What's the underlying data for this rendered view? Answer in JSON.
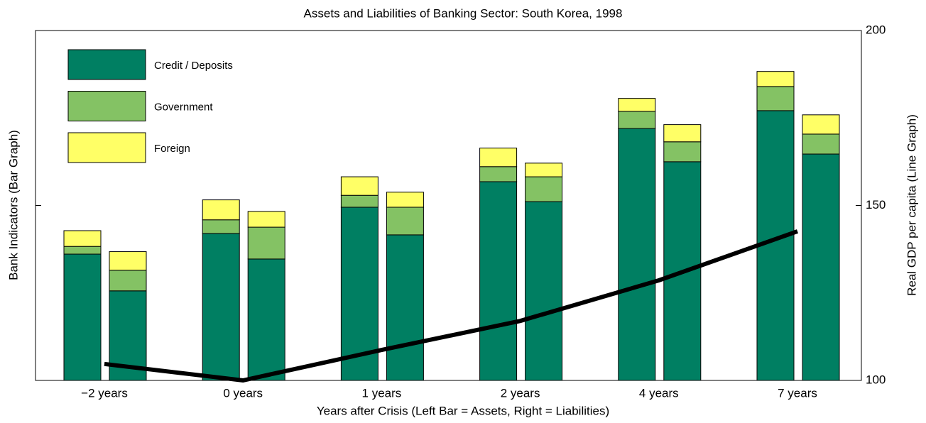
{
  "chart_data": {
    "type": "stacked-bar-line",
    "title": "Assets and Liabilities of Banking Sector: South Korea, 1998",
    "xlabel": "Years after Crisis (Left Bar = Assets, Right = Liabilities)",
    "ylabel": "Bank Indicators (Bar Graph)",
    "y2label": "Real GDP per capita (Line Graph)",
    "categories": [
      "−2 years",
      "0 years",
      "1 years",
      "2 years",
      "4 years",
      "7 years"
    ],
    "series": [
      {
        "name": "Credit / Deposits",
        "color": "#007f62",
        "axis": "y2",
        "assets": [
          136.1,
          142.0,
          149.5,
          156.8,
          172.0,
          177.1
        ],
        "liabilities": [
          125.6,
          134.7,
          141.6,
          151.1,
          162.5,
          164.7
        ]
      },
      {
        "name": "Government",
        "color": "#84c264",
        "axis": "y2",
        "assets": [
          2.2,
          3.9,
          3.4,
          4.3,
          4.9,
          6.9
        ],
        "liabilities": [
          5.9,
          9.1,
          7.9,
          7.1,
          5.7,
          5.7
        ]
      },
      {
        "name": "Foreign",
        "color": "#ffff66",
        "axis": "y2",
        "assets": [
          4.5,
          5.7,
          5.3,
          5.3,
          3.7,
          4.3
        ],
        "liabilities": [
          5.3,
          4.5,
          4.3,
          3.9,
          4.9,
          5.5
        ]
      }
    ],
    "line": {
      "color": "#000000",
      "axis": "y2",
      "values": [
        104.7,
        100.0,
        108.7,
        117.0,
        128.6,
        142.6
      ]
    },
    "y2lim": [
      100,
      200
    ],
    "y2ticks": [
      100,
      150,
      200
    ],
    "legend": "upper-left"
  }
}
